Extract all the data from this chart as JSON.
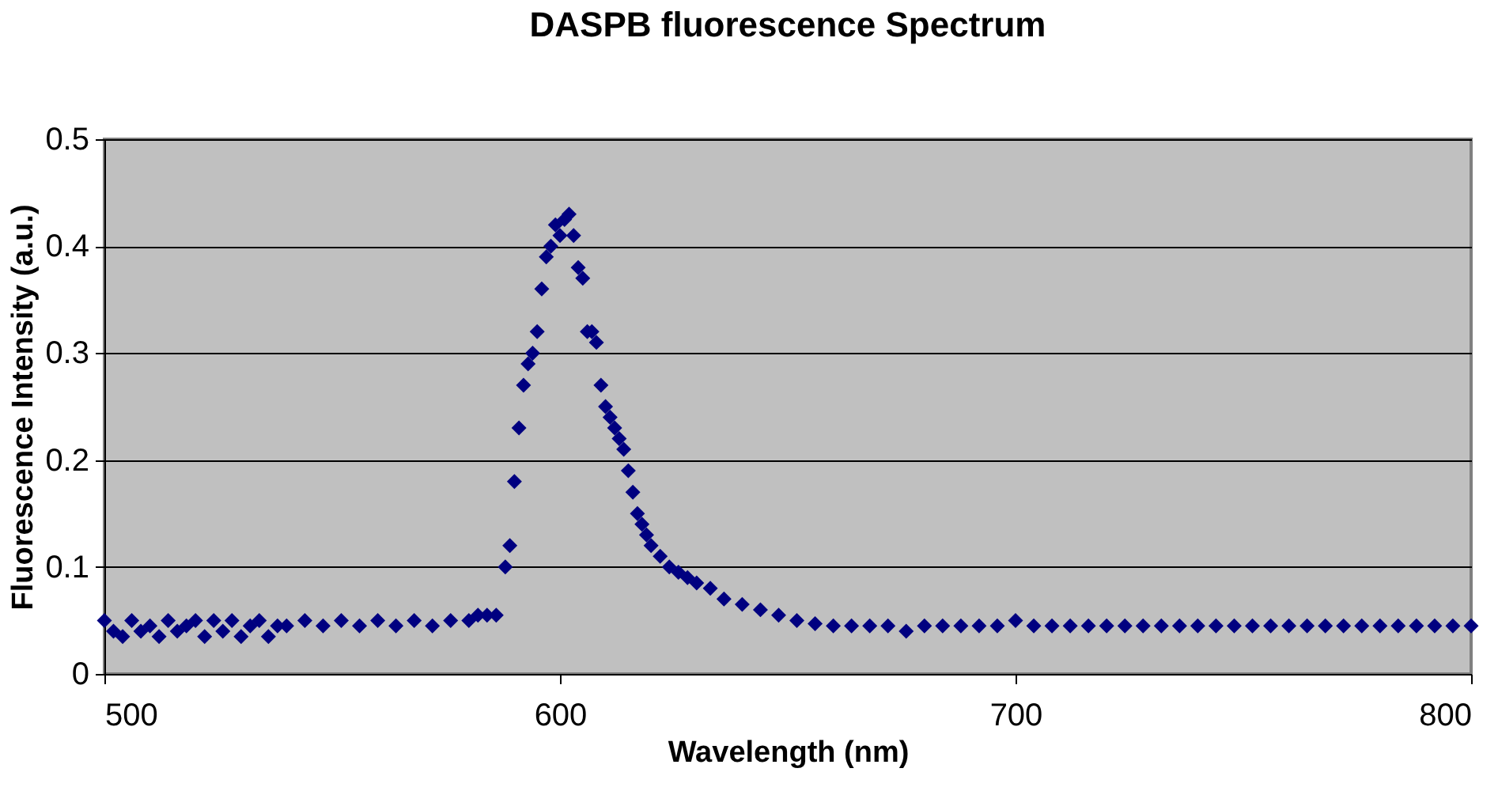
{
  "chart_data": {
    "type": "scatter",
    "title": "DASPB fluorescence Spectrum",
    "xlabel": "Wavelength (nm)",
    "ylabel": "Fluorescence Intensity (a.u.)",
    "xlim": [
      500,
      800
    ],
    "ylim": [
      0,
      0.5
    ],
    "xticks": [
      500,
      600,
      700,
      800
    ],
    "yticks": [
      0,
      0.1,
      0.2,
      0.3,
      0.4,
      0.5
    ],
    "grid": "y",
    "marker": "diamond",
    "series": [
      {
        "color": "#000080",
        "x": [
          500,
          502,
          504,
          506,
          508,
          510,
          512,
          514,
          516,
          518,
          520,
          522,
          524,
          526,
          528,
          530,
          532,
          534,
          536,
          538,
          540,
          544,
          548,
          552,
          556,
          560,
          564,
          568,
          572,
          576,
          580,
          582,
          584,
          586,
          588,
          589,
          590,
          591,
          592,
          593,
          594,
          595,
          596,
          597,
          598,
          599,
          600,
          601,
          602,
          603,
          604,
          605,
          606,
          607,
          608,
          609,
          610,
          611,
          612,
          613,
          614,
          615,
          616,
          617,
          618,
          619,
          620,
          622,
          624,
          626,
          628,
          630,
          633,
          636,
          640,
          644,
          648,
          652,
          656,
          660,
          664,
          668,
          672,
          676,
          680,
          684,
          688,
          692,
          696,
          700,
          704,
          708,
          712,
          716,
          720,
          724,
          728,
          732,
          736,
          740,
          744,
          748,
          752,
          756,
          760,
          764,
          768,
          772,
          776,
          780,
          784,
          788,
          792,
          796,
          800
        ],
        "values": [
          0.05,
          0.04,
          0.035,
          0.05,
          0.04,
          0.045,
          0.035,
          0.05,
          0.04,
          0.045,
          0.05,
          0.035,
          0.05,
          0.04,
          0.05,
          0.035,
          0.045,
          0.05,
          0.035,
          0.045,
          0.045,
          0.05,
          0.045,
          0.05,
          0.045,
          0.05,
          0.045,
          0.05,
          0.045,
          0.05,
          0.05,
          0.055,
          0.055,
          0.055,
          0.1,
          0.12,
          0.18,
          0.23,
          0.27,
          0.29,
          0.3,
          0.32,
          0.36,
          0.39,
          0.4,
          0.42,
          0.41,
          0.425,
          0.43,
          0.41,
          0.38,
          0.37,
          0.32,
          0.32,
          0.31,
          0.27,
          0.25,
          0.24,
          0.23,
          0.22,
          0.21,
          0.19,
          0.17,
          0.15,
          0.14,
          0.13,
          0.12,
          0.11,
          0.1,
          0.095,
          0.09,
          0.085,
          0.08,
          0.07,
          0.065,
          0.06,
          0.055,
          0.05,
          0.047,
          0.045,
          0.045,
          0.045,
          0.045,
          0.04,
          0.045,
          0.045,
          0.045,
          0.045,
          0.045,
          0.05,
          0.045,
          0.045,
          0.045,
          0.045,
          0.045,
          0.045,
          0.045,
          0.045,
          0.045,
          0.045,
          0.045,
          0.045,
          0.045,
          0.045,
          0.045,
          0.045,
          0.045,
          0.045,
          0.045,
          0.045,
          0.045,
          0.045,
          0.045,
          0.045,
          0.045
        ]
      }
    ]
  }
}
